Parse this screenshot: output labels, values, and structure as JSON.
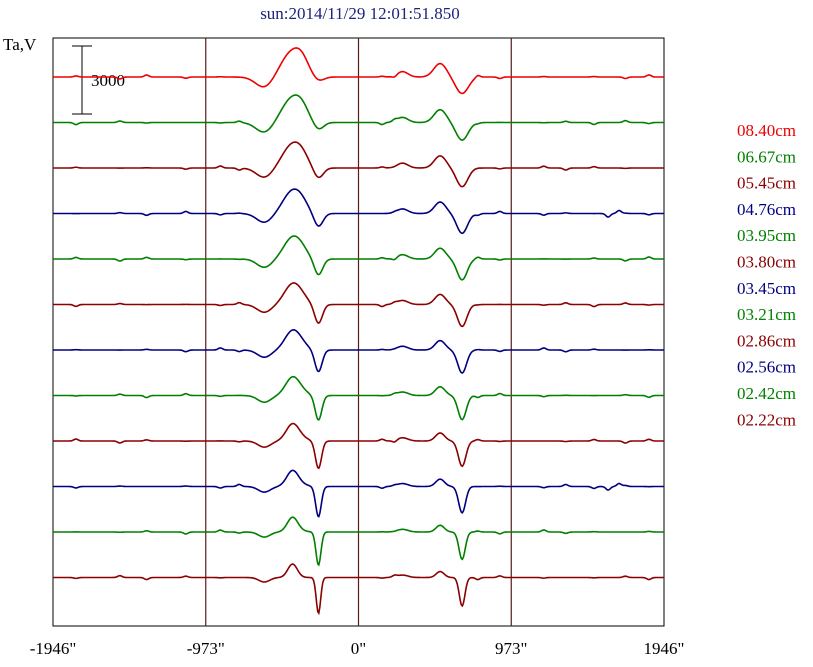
{
  "chart_data": {
    "type": "line",
    "title": "sun:2014/11/29 12:01:51.850",
    "ylabel": "Ta,V",
    "scale_bar_label": "3000",
    "x_tick_labels": [
      "-1946\"",
      "-973\"",
      "0\"",
      "973\"",
      "1946\""
    ],
    "x_ticks": [
      -1946,
      -973,
      0,
      973,
      1946
    ],
    "xlim": [
      -1946,
      1946
    ],
    "vertical_grid_at": [
      -973,
      0,
      973
    ],
    "grid": false,
    "legend_position": "right",
    "series": [
      {
        "name": "08.40cm",
        "color": "#ee0000"
      },
      {
        "name": "06.67cm",
        "color": "#008000"
      },
      {
        "name": "05.45cm",
        "color": "#8b0000"
      },
      {
        "name": "04.76cm",
        "color": "#000080"
      },
      {
        "name": "03.95cm",
        "color": "#008000"
      },
      {
        "name": "03.80cm",
        "color": "#8b0000"
      },
      {
        "name": "03.45cm",
        "color": "#000080"
      },
      {
        "name": "03.21cm",
        "color": "#008000"
      },
      {
        "name": "02.86cm",
        "color": "#8b0000"
      },
      {
        "name": "02.56cm",
        "color": "#000080"
      },
      {
        "name": "02.42cm",
        "color": "#008000"
      },
      {
        "name": "02.22cm",
        "color": "#8b0000"
      }
    ]
  }
}
